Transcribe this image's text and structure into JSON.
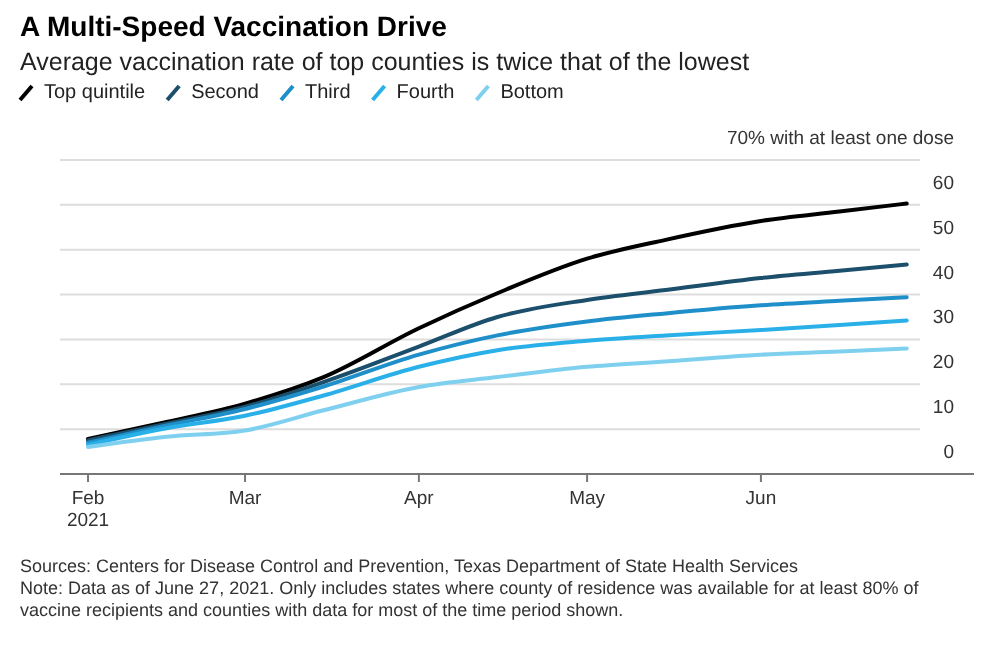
{
  "chart_data": {
    "type": "line",
    "title": "A Multi-Speed Vaccination Drive",
    "subtitle": "Average vaccination rate of top counties is twice that of the lowest",
    "x": [
      "2021-02-01",
      "2021-02-15",
      "2021-03-01",
      "2021-03-15",
      "2021-04-01",
      "2021-04-15",
      "2021-05-01",
      "2021-05-15",
      "2021-06-01",
      "2021-06-15",
      "2021-06-27"
    ],
    "series": [
      {
        "name": "Top quintile",
        "color": "#000000",
        "values": [
          7.8,
          11.6,
          15.7,
          21.6,
          32.5,
          40.3,
          48,
          52.2,
          56.4,
          58.5,
          60.3
        ]
      },
      {
        "name": "Second",
        "color": "#1b4f6b",
        "values": [
          7.5,
          11.2,
          15,
          20.5,
          28.4,
          35,
          38.8,
          41,
          43.7,
          45.3,
          46.7
        ]
      },
      {
        "name": "Third",
        "color": "#1f8fc9",
        "values": [
          7,
          10.8,
          14.5,
          19.5,
          26.6,
          30.9,
          34,
          35.8,
          37.6,
          38.6,
          39.4
        ]
      },
      {
        "name": "Fourth",
        "color": "#2ab0e8",
        "values": [
          6.5,
          10.2,
          13,
          17.5,
          23.9,
          27.6,
          29.7,
          30.9,
          32.1,
          33.2,
          34.2
        ]
      },
      {
        "name": "Bottom",
        "color": "#7fd0ef",
        "values": [
          6,
          8.3,
          9.7,
          14.2,
          19.4,
          21.6,
          23.9,
          25.1,
          26.6,
          27.3,
          28
        ]
      }
    ],
    "xlim": [
      "2021-01-27",
      "2021-07-09"
    ],
    "xticks": [
      {
        "value": "2021-02-01",
        "label": "Feb\n2021"
      },
      {
        "value": "2021-03-01",
        "label": "Mar"
      },
      {
        "value": "2021-04-01",
        "label": "Apr"
      },
      {
        "value": "2021-05-01",
        "label": "May"
      },
      {
        "value": "2021-06-01",
        "label": "Jun"
      }
    ],
    "ylim": [
      0,
      70
    ],
    "yticks": [
      0,
      10,
      20,
      30,
      40,
      50,
      60,
      {
        "value": 70,
        "label": "70% with at least one dose"
      }
    ],
    "grid": "y",
    "legend": "top left",
    "annotations": [
      "Sources: Centers for Disease Control and Prevention, Texas Department of State Health Services",
      "Note: Data as of June 27, 2021. Only includes states where county of residence was available for at least 80% of vaccine recipients and counties with data for most of the time period shown."
    ]
  }
}
